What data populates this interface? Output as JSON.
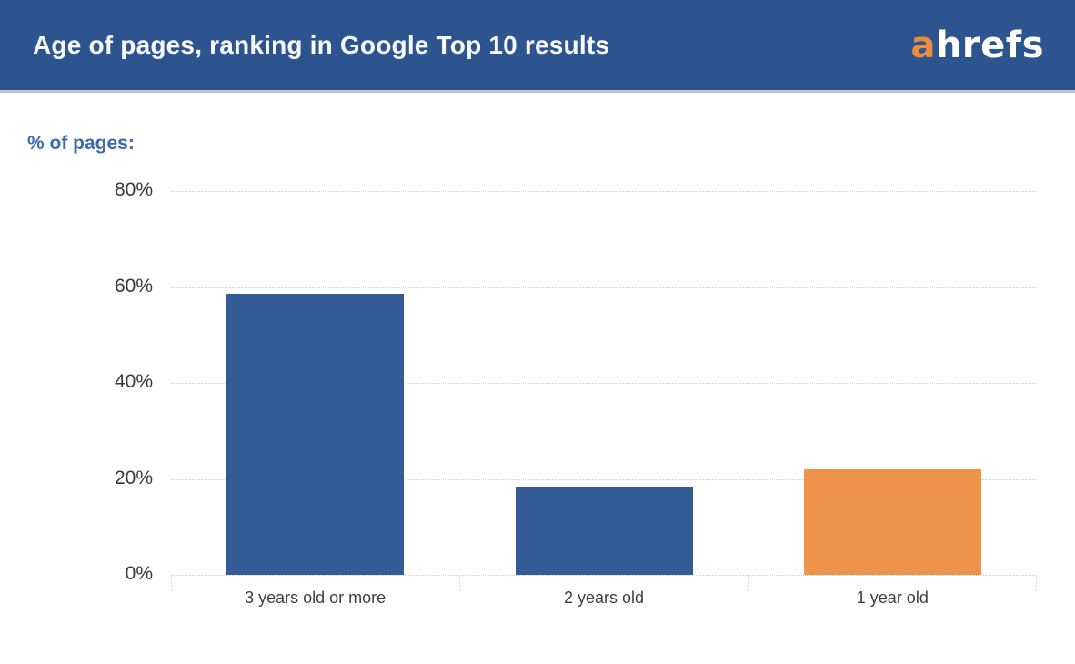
{
  "header": {
    "title": "Age of pages, ranking in Google Top 10 results",
    "logo": {
      "prefix": "a",
      "rest": "hrefs"
    }
  },
  "axis": {
    "y_title": "% of pages:"
  },
  "chart_data": {
    "type": "bar",
    "title": "Age of pages, ranking in Google Top 10 results",
    "ylabel": "% of pages:",
    "xlabel": "",
    "categories": [
      "3 years old or more",
      "2 years old",
      "1 year old"
    ],
    "values": [
      58.5,
      18.3,
      21.9
    ],
    "value_unit": "percent",
    "ylim": [
      0,
      80
    ],
    "ytick_values": [
      0,
      20,
      40,
      60,
      80
    ],
    "ytick_labels": [
      "0%",
      "20%",
      "40%",
      "60%",
      "80%"
    ],
    "grid": "horizontal-dotted",
    "legend": "none",
    "bar_colors": [
      "#335b96",
      "#335b96",
      "#f0934a"
    ]
  },
  "colors": {
    "header_bg": "#2e5490",
    "header_text": "#f7f9fc",
    "logo_accent": "#ef8b3d",
    "logo_text": "#ffffff",
    "axis_title_text": "#3e68af",
    "tick_text": "#383838",
    "gridline": "#cfcfcf",
    "bar_blue": "#335b96",
    "bar_orange": "#f0934a"
  }
}
